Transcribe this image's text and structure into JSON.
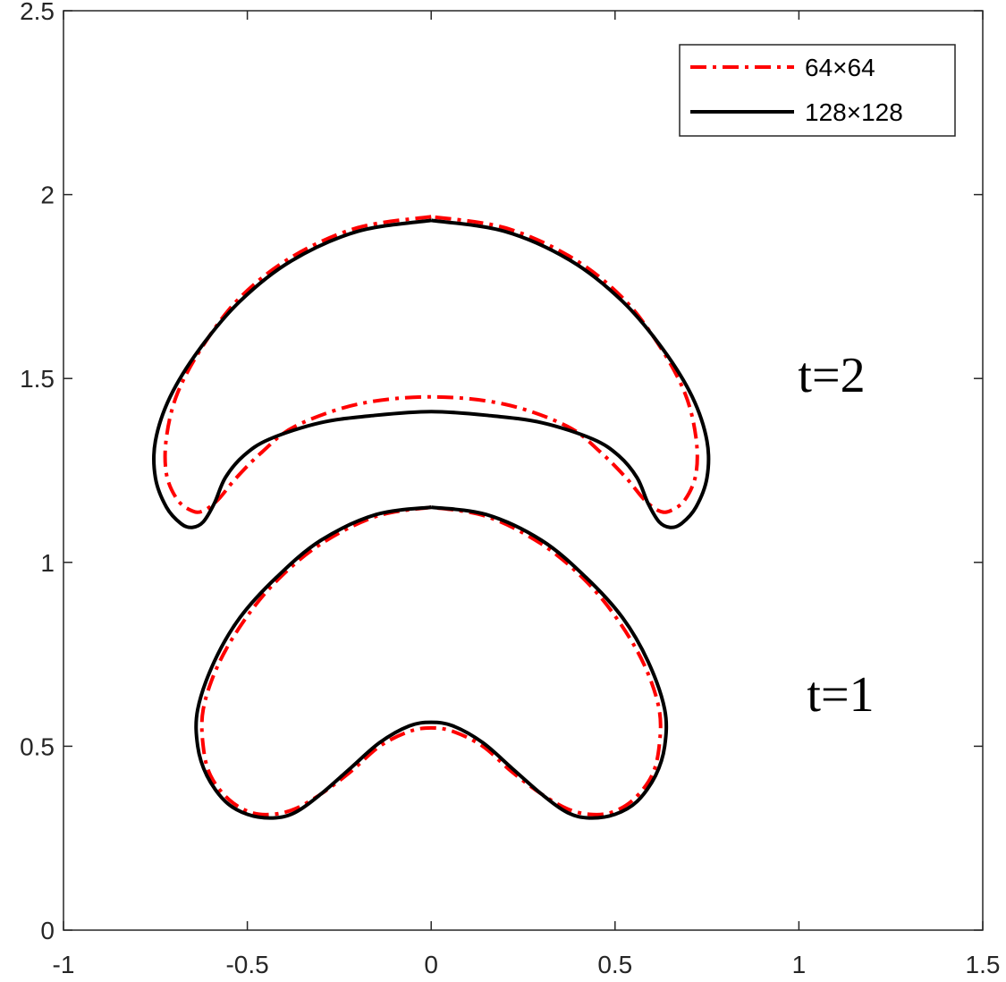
{
  "chart_data": {
    "type": "line",
    "xlim": [
      -1,
      1.5
    ],
    "ylim": [
      0,
      2.5
    ],
    "xticks": [
      -1,
      -0.5,
      0,
      0.5,
      1,
      1.5
    ],
    "yticks": [
      0,
      0.5,
      1,
      1.5,
      2,
      2.5
    ],
    "grid": false,
    "legend": "upper right",
    "annotations": [
      "t=2",
      "t=1"
    ],
    "series": [
      {
        "name": "64×64",
        "color": "#ff0000",
        "line_style": "dashdot",
        "x": [
          0,
          -0.15,
          -0.3,
          -0.42,
          -0.51,
          -0.58,
          -0.62,
          -0.62,
          -0.6,
          -0.55,
          -0.49,
          -0.43,
          -0.37,
          -0.3,
          -0.22,
          -0.14,
          -0.06,
          0,
          0.06,
          0.14,
          0.22,
          0.3,
          0.37,
          0.43,
          0.49,
          0.55,
          0.6,
          0.62,
          0.62,
          0.58,
          0.51,
          0.42,
          0.3,
          0.15,
          0,
          null,
          0,
          -0.2,
          -0.38,
          -0.52,
          -0.62,
          -0.69,
          -0.72,
          -0.72,
          -0.69,
          -0.65,
          -0.62,
          -0.58,
          -0.53,
          -0.46,
          -0.37,
          -0.2,
          0,
          0.2,
          0.37,
          0.46,
          0.53,
          0.58,
          0.62,
          0.65,
          0.69,
          0.72,
          0.72,
          0.69,
          0.62,
          0.52,
          0.38,
          0.2,
          0
        ],
        "y": [
          1.15,
          1.125,
          1.05,
          0.95,
          0.84,
          0.72,
          0.6,
          0.5,
          0.42,
          0.355,
          0.32,
          0.315,
          0.33,
          0.37,
          0.43,
          0.5,
          0.54,
          0.55,
          0.54,
          0.5,
          0.43,
          0.37,
          0.33,
          0.315,
          0.32,
          0.355,
          0.42,
          0.5,
          0.6,
          0.72,
          0.84,
          0.95,
          1.05,
          1.125,
          1.15,
          null,
          1.94,
          1.91,
          1.83,
          1.72,
          1.59,
          1.46,
          1.34,
          1.24,
          1.17,
          1.14,
          1.14,
          1.17,
          1.23,
          1.3,
          1.37,
          1.43,
          1.45,
          1.43,
          1.37,
          1.3,
          1.23,
          1.17,
          1.14,
          1.14,
          1.17,
          1.24,
          1.34,
          1.46,
          1.59,
          1.72,
          1.83,
          1.91,
          1.94
        ]
      },
      {
        "name": "128×128",
        "color": "#000000",
        "line_style": "solid",
        "x": [
          0,
          -0.15,
          -0.3,
          -0.42,
          -0.52,
          -0.59,
          -0.635,
          -0.635,
          -0.61,
          -0.56,
          -0.5,
          -0.43,
          -0.37,
          -0.3,
          -0.22,
          -0.14,
          -0.06,
          0,
          0.06,
          0.14,
          0.22,
          0.3,
          0.37,
          0.43,
          0.5,
          0.56,
          0.61,
          0.635,
          0.635,
          0.59,
          0.52,
          0.42,
          0.3,
          0.15,
          0,
          null,
          0,
          -0.2,
          -0.38,
          -0.52,
          -0.63,
          -0.71,
          -0.75,
          -0.75,
          -0.72,
          -0.68,
          -0.65,
          -0.62,
          -0.59,
          -0.56,
          -0.51,
          -0.44,
          -0.3,
          -0.15,
          0,
          0.15,
          0.3,
          0.44,
          0.51,
          0.56,
          0.59,
          0.62,
          0.65,
          0.68,
          0.72,
          0.75,
          0.75,
          0.71,
          0.63,
          0.52,
          0.38,
          0.2,
          0
        ],
        "y": [
          1.15,
          1.13,
          1.06,
          0.96,
          0.85,
          0.73,
          0.6,
          0.5,
          0.42,
          0.35,
          0.315,
          0.305,
          0.32,
          0.37,
          0.44,
          0.51,
          0.555,
          0.565,
          0.555,
          0.51,
          0.44,
          0.37,
          0.32,
          0.305,
          0.315,
          0.35,
          0.42,
          0.5,
          0.6,
          0.73,
          0.85,
          0.96,
          1.06,
          1.13,
          1.15,
          null,
          1.93,
          1.9,
          1.82,
          1.71,
          1.58,
          1.45,
          1.33,
          1.23,
          1.15,
          1.105,
          1.095,
          1.11,
          1.16,
          1.23,
          1.29,
          1.335,
          1.38,
          1.4,
          1.41,
          1.4,
          1.38,
          1.335,
          1.29,
          1.23,
          1.16,
          1.11,
          1.095,
          1.105,
          1.15,
          1.23,
          1.33,
          1.45,
          1.58,
          1.71,
          1.82,
          1.9,
          1.93
        ]
      }
    ]
  }
}
